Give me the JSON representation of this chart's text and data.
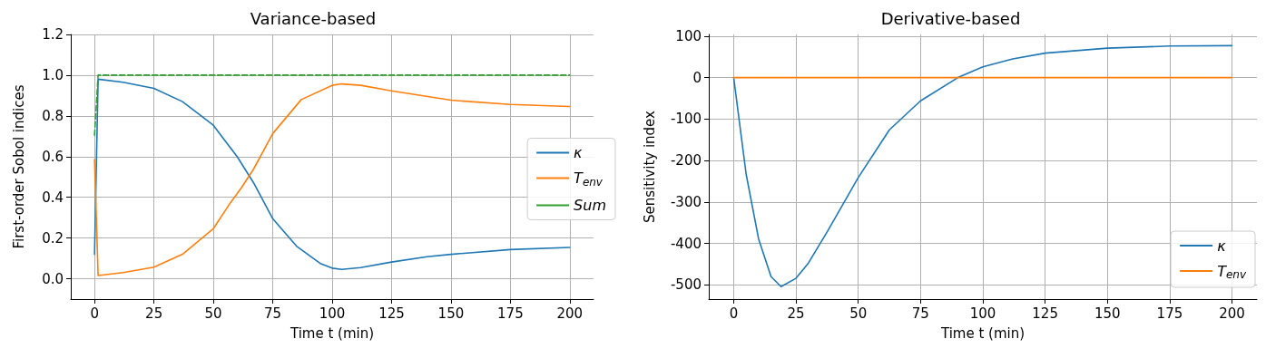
{
  "chart_data": [
    {
      "type": "line",
      "title": "Variance-based",
      "xlabel": "Time t (min)",
      "ylabel": "First-order Sobol indices",
      "xlim": [
        -10,
        210
      ],
      "ylim": [
        -0.1,
        1.2
      ],
      "xticks": [
        0,
        25,
        50,
        75,
        100,
        125,
        150,
        175,
        200
      ],
      "yticks": [
        {
          "value": 0,
          "label": "0.0"
        },
        0.2,
        0.4,
        0.6,
        0.8,
        {
          "value": 1,
          "label": "1.0"
        },
        1.2
      ],
      "grid": true,
      "legend": "right",
      "line_style": "solid",
      "marker": "none",
      "series": [
        {
          "name": "κ",
          "color": "#1f77b4",
          "x": [
            0,
            1.5,
            12,
            25,
            37,
            50,
            60,
            67,
            75,
            85,
            95,
            100,
            104,
            112,
            125,
            140,
            150,
            175,
            200
          ],
          "values": [
            0.12,
            0.98,
            0.965,
            0.935,
            0.87,
            0.754,
            0.6,
            0.47,
            0.295,
            0.16,
            0.075,
            0.052,
            0.046,
            0.055,
            0.082,
            0.108,
            0.12,
            0.143,
            0.154
          ]
        },
        {
          "name": "T$_{env}$",
          "color": "#ff7f0e",
          "x": [
            0,
            1.5,
            12,
            25,
            37,
            50,
            57,
            62,
            67,
            75,
            87,
            100,
            104,
            112,
            125,
            150,
            175,
            200
          ],
          "values": [
            0.585,
            0.016,
            0.03,
            0.057,
            0.12,
            0.246,
            0.37,
            0.45,
            0.54,
            0.713,
            0.88,
            0.95,
            0.957,
            0.95,
            0.923,
            0.877,
            0.856,
            0.846
          ]
        },
        {
          "name": "Sum",
          "color": "#2ca02c",
          "line_style": "dashed",
          "x": [
            0,
            1.5,
            200
          ],
          "values": [
            0.705,
            1.0,
            1.0
          ]
        }
      ]
    },
    {
      "type": "line",
      "title": "Derivative-based",
      "xlabel": "Time t (min)",
      "ylabel": "Sensitivity index",
      "xlim": [
        -10,
        210
      ],
      "ylim": [
        -534,
        104
      ],
      "xticks": [
        0,
        25,
        50,
        75,
        100,
        125,
        150,
        175,
        200
      ],
      "yticks": [
        -500,
        -400,
        -300,
        -200,
        -100,
        0,
        100
      ],
      "grid": true,
      "legend": "bottom right",
      "line_style": "solid",
      "marker": "none",
      "series": [
        {
          "name": "κ",
          "color": "#1f77b4",
          "x": [
            0,
            5,
            10,
            15,
            19,
            25,
            30,
            37.5,
            50,
            62.5,
            75,
            90,
            100,
            112,
            125,
            150,
            175,
            200
          ],
          "values": [
            0,
            -233,
            -389,
            -480,
            -504,
            -484,
            -447,
            -372,
            -241,
            -126,
            -56,
            0,
            26,
            45,
            59,
            71,
            76,
            77
          ]
        },
        {
          "name": "T$_{env}$",
          "color": "#ff7f0e",
          "x": [
            0,
            200
          ],
          "values": [
            0,
            0
          ]
        }
      ]
    }
  ]
}
